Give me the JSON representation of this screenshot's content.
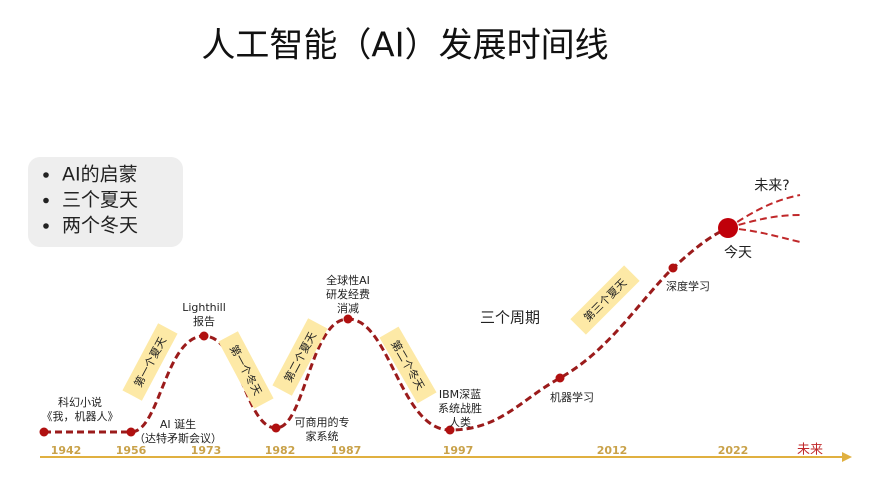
{
  "title": "人工智能（AI）发展时间线",
  "summary": {
    "items": [
      "AI的启蒙",
      "三个夏天",
      "两个冬天"
    ]
  },
  "timeline": {
    "years": [
      "1942",
      "1956",
      "1973",
      "1982",
      "1987",
      "1997",
      "2012",
      "2022"
    ],
    "future": "未来"
  },
  "events": [
    {
      "lines": [
        "科幻小说",
        "《我，机器人》"
      ]
    },
    {
      "lines": [
        "AI 诞生",
        "（达特矛斯会议）"
      ]
    },
    {
      "lines": [
        "Lighthill",
        "报告"
      ]
    },
    {
      "lines": [
        "可商用的专",
        "家系统"
      ]
    },
    {
      "lines": [
        "全球性AI",
        "研发经费",
        "消减"
      ]
    },
    {
      "lines": [
        "IBM深蓝",
        "系统战胜",
        "人类"
      ]
    },
    {
      "lines": [
        "机器学习"
      ]
    },
    {
      "lines": [
        "深度学习"
      ]
    }
  ],
  "seasons": [
    "第一个夏天",
    "第一个冬天",
    "第二个夏天",
    "第二个冬天",
    "第三个夏天"
  ],
  "cycles_label": "三个周期",
  "today": "今天",
  "future_question": "未来?"
}
